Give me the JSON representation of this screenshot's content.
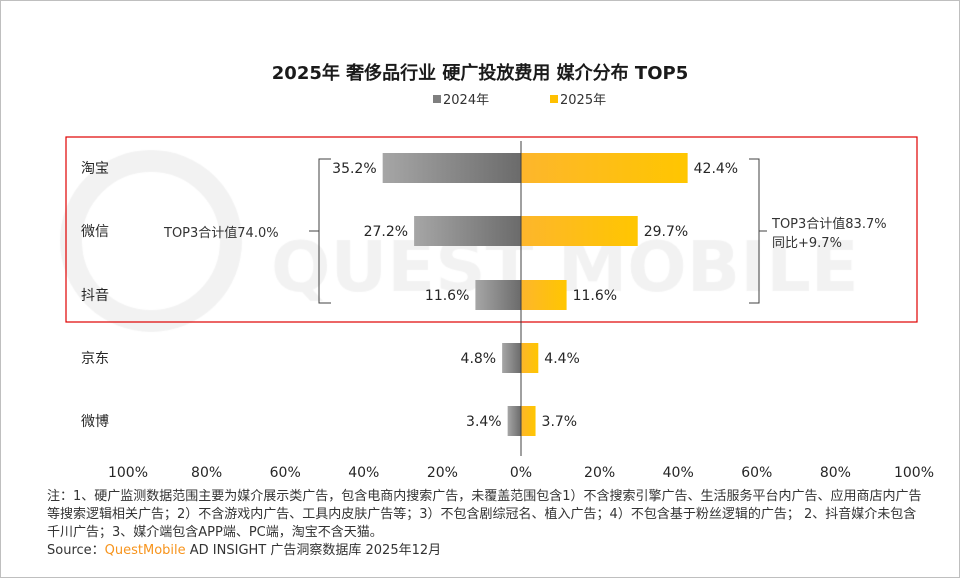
{
  "chart_data": {
    "type": "bar",
    "orientation": "horizontal-diverging",
    "title": "2025年 奢侈品行业 硬广投放费用 媒介分布 TOP5",
    "categories": [
      "淘宝",
      "微信",
      "抖音",
      "京东",
      "微博"
    ],
    "series": [
      {
        "name": "2024年",
        "values": [
          35.2,
          27.2,
          11.6,
          4.8,
          3.4
        ],
        "color": "#7f7f7f",
        "direction": "left"
      },
      {
        "name": "2025年",
        "values": [
          42.4,
          29.7,
          11.6,
          4.4,
          3.7
        ],
        "color": "#ffc000",
        "direction": "right"
      }
    ],
    "value_labels_2024": [
      "35.2%",
      "27.2%",
      "11.6%",
      "4.8%",
      "3.4%"
    ],
    "value_labels_2025": [
      "42.4%",
      "29.7%",
      "11.6%",
      "4.4%",
      "3.7%"
    ],
    "xlim": [
      -100,
      100
    ],
    "x_ticks": [
      "100%",
      "80%",
      "60%",
      "40%",
      "20%",
      "0%",
      "20%",
      "40%",
      "60%",
      "80%",
      "100%"
    ],
    "legend_position": "top",
    "grid": false,
    "annotations": {
      "left": "TOP3合计值74.0%",
      "right_line1": "TOP3合计值83.7%",
      "right_line2": "同比+9.7%"
    },
    "highlight_color": "#e00000"
  },
  "note": {
    "line1": "注：1、硬广监测数据范围主要为媒介展示类广告，包含电商内搜索广告，未覆盖范围包含1）不含搜索引擎广告、生活服务平台内广告、应用商店内广告等搜索逻辑相关广告；2）不含游戏内广告、工具内皮肤广告等；3）不包含剧综冠名、植入广告；4）不包含基于粉丝逻辑的广告； 2、抖音媒介未包含千川广告；3、媒介端包含APP端、PC端，淘宝不含天猫。",
    "source_label": "Source：",
    "source_brand": "QuestMobile",
    "source_rest": " AD INSIGHT 广告洞察数据库 2025年12月"
  },
  "watermark": "QUEST MOBILE"
}
